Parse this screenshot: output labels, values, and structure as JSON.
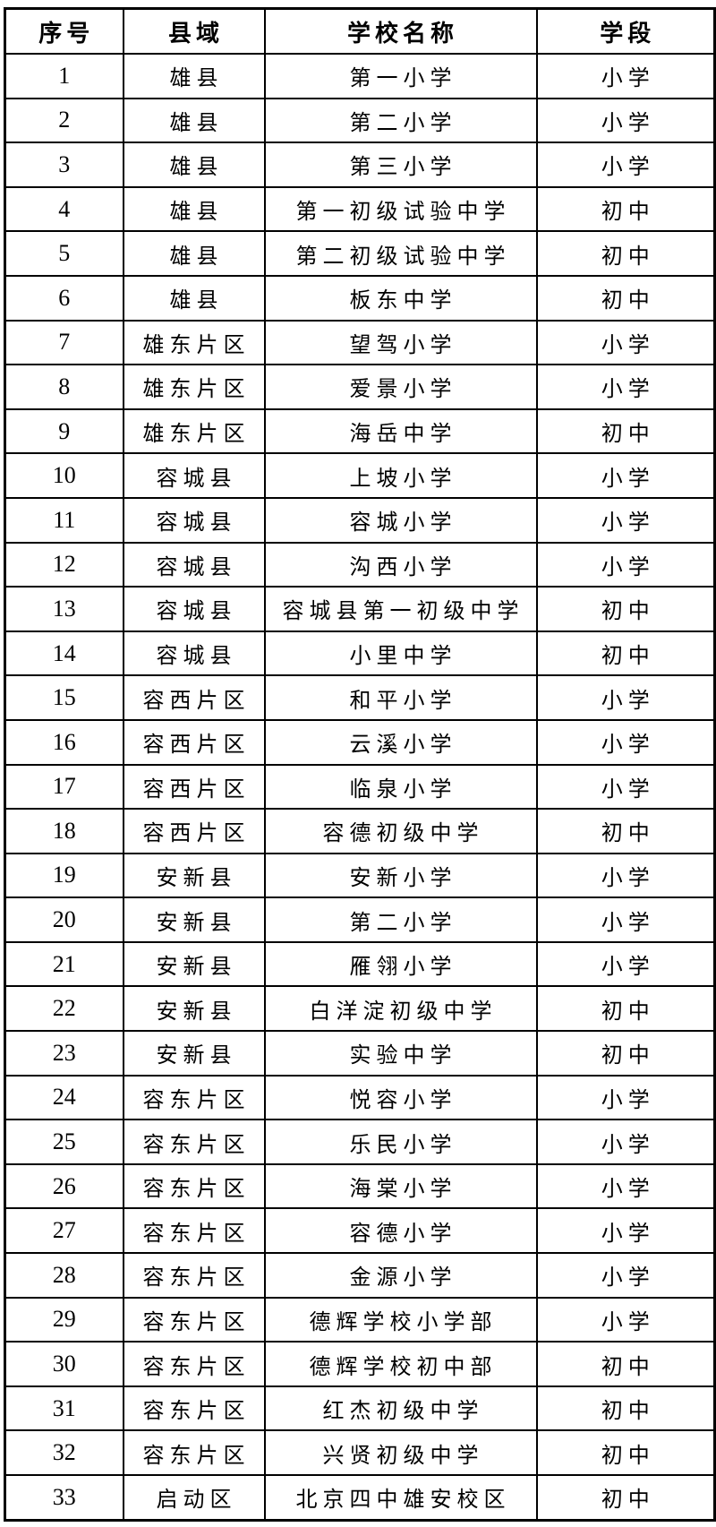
{
  "colors": {
    "border": "#000000",
    "text": "#000000",
    "background": "#ffffff"
  },
  "table": {
    "headers": [
      "序号",
      "县域",
      "学校名称",
      "学段"
    ],
    "rows": [
      {
        "no": "1",
        "county": "雄县",
        "school": "第一小学",
        "stage": "小学"
      },
      {
        "no": "2",
        "county": "雄县",
        "school": "第二小学",
        "stage": "小学"
      },
      {
        "no": "3",
        "county": "雄县",
        "school": "第三小学",
        "stage": "小学"
      },
      {
        "no": "4",
        "county": "雄县",
        "school": "第一初级试验中学",
        "stage": "初中"
      },
      {
        "no": "5",
        "county": "雄县",
        "school": "第二初级试验中学",
        "stage": "初中"
      },
      {
        "no": "6",
        "county": "雄县",
        "school": "板东中学",
        "stage": "初中"
      },
      {
        "no": "7",
        "county": "雄东片区",
        "school": "望驾小学",
        "stage": "小学"
      },
      {
        "no": "8",
        "county": "雄东片区",
        "school": "爱景小学",
        "stage": "小学"
      },
      {
        "no": "9",
        "county": "雄东片区",
        "school": "海岳中学",
        "stage": "初中"
      },
      {
        "no": "10",
        "county": "容城县",
        "school": "上坡小学",
        "stage": "小学"
      },
      {
        "no": "11",
        "county": "容城县",
        "school": "容城小学",
        "stage": "小学"
      },
      {
        "no": "12",
        "county": "容城县",
        "school": "沟西小学",
        "stage": "小学"
      },
      {
        "no": "13",
        "county": "容城县",
        "school": "容城县第一初级中学",
        "stage": "初中"
      },
      {
        "no": "14",
        "county": "容城县",
        "school": "小里中学",
        "stage": "初中"
      },
      {
        "no": "15",
        "county": "容西片区",
        "school": "和平小学",
        "stage": "小学"
      },
      {
        "no": "16",
        "county": "容西片区",
        "school": "云溪小学",
        "stage": "小学"
      },
      {
        "no": "17",
        "county": "容西片区",
        "school": "临泉小学",
        "stage": "小学"
      },
      {
        "no": "18",
        "county": "容西片区",
        "school": "容德初级中学",
        "stage": "初中"
      },
      {
        "no": "19",
        "county": "安新县",
        "school": "安新小学",
        "stage": "小学"
      },
      {
        "no": "20",
        "county": "安新县",
        "school": "第二小学",
        "stage": "小学"
      },
      {
        "no": "21",
        "county": "安新县",
        "school": "雁翎小学",
        "stage": "小学"
      },
      {
        "no": "22",
        "county": "安新县",
        "school": "白洋淀初级中学",
        "stage": "初中"
      },
      {
        "no": "23",
        "county": "安新县",
        "school": "实验中学",
        "stage": "初中"
      },
      {
        "no": "24",
        "county": "容东片区",
        "school": "悦容小学",
        "stage": "小学"
      },
      {
        "no": "25",
        "county": "容东片区",
        "school": "乐民小学",
        "stage": "小学"
      },
      {
        "no": "26",
        "county": "容东片区",
        "school": "海棠小学",
        "stage": "小学"
      },
      {
        "no": "27",
        "county": "容东片区",
        "school": "容德小学",
        "stage": "小学"
      },
      {
        "no": "28",
        "county": "容东片区",
        "school": "金源小学",
        "stage": "小学"
      },
      {
        "no": "29",
        "county": "容东片区",
        "school": "德辉学校小学部",
        "stage": "小学"
      },
      {
        "no": "30",
        "county": "容东片区",
        "school": "德辉学校初中部",
        "stage": "初中"
      },
      {
        "no": "31",
        "county": "容东片区",
        "school": "红杰初级中学",
        "stage": "初中"
      },
      {
        "no": "32",
        "county": "容东片区",
        "school": "兴贤初级中学",
        "stage": "初中"
      },
      {
        "no": "33",
        "county": "启动区",
        "school": "北京四中雄安校区",
        "stage": "初中"
      }
    ]
  }
}
